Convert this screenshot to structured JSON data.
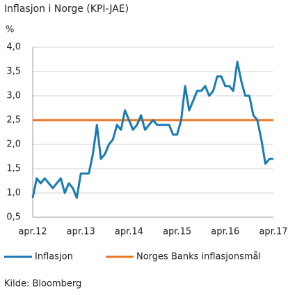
{
  "chart_data": {
    "type": "line",
    "title": "Inflasjon i Norge (KPI-JAE)",
    "y_label": "%",
    "source": "Kilde: Bloomberg",
    "categories": [
      "apr.12",
      null,
      null,
      null,
      null,
      null,
      null,
      null,
      null,
      null,
      null,
      null,
      "apr.13",
      null,
      null,
      null,
      null,
      null,
      null,
      null,
      null,
      null,
      null,
      null,
      "apr.14",
      null,
      null,
      null,
      null,
      null,
      null,
      null,
      null,
      null,
      null,
      null,
      "apr.15",
      null,
      null,
      null,
      null,
      null,
      null,
      null,
      null,
      null,
      null,
      null,
      "apr.16",
      null,
      null,
      null,
      null,
      null,
      null,
      null,
      null,
      null,
      null,
      null,
      "apr.17"
    ],
    "series": [
      {
        "name": "Inflasjon",
        "color": "#1a7bb0",
        "values": [
          0.9,
          1.3,
          1.2,
          1.3,
          1.2,
          1.1,
          1.2,
          1.3,
          1.0,
          1.2,
          1.1,
          0.9,
          1.4,
          1.4,
          1.4,
          1.8,
          2.4,
          1.7,
          1.8,
          2.0,
          2.1,
          2.4,
          2.3,
          2.7,
          2.5,
          2.3,
          2.4,
          2.6,
          2.3,
          2.4,
          2.5,
          2.4,
          2.4,
          2.4,
          2.4,
          2.2,
          2.2,
          2.5,
          3.2,
          2.7,
          2.9,
          3.1,
          3.1,
          3.2,
          3.0,
          3.1,
          3.4,
          3.4,
          3.2,
          3.2,
          3.1,
          3.7,
          3.3,
          3.0,
          3.0,
          2.6,
          2.5,
          2.1,
          1.6,
          1.7,
          1.7
        ]
      },
      {
        "name": "Norges Banks inflasjonsmål",
        "color": "#e87722",
        "values": [
          2.5,
          2.5,
          2.5,
          2.5,
          2.5,
          2.5,
          2.5,
          2.5,
          2.5,
          2.5,
          2.5,
          2.5,
          2.5,
          2.5,
          2.5,
          2.5,
          2.5,
          2.5,
          2.5,
          2.5,
          2.5,
          2.5,
          2.5,
          2.5,
          2.5,
          2.5,
          2.5,
          2.5,
          2.5,
          2.5,
          2.5,
          2.5,
          2.5,
          2.5,
          2.5,
          2.5,
          2.5,
          2.5,
          2.5,
          2.5,
          2.5,
          2.5,
          2.5,
          2.5,
          2.5,
          2.5,
          2.5,
          2.5,
          2.5,
          2.5,
          2.5,
          2.5,
          2.5,
          2.5,
          2.5,
          2.5,
          2.5,
          2.5,
          2.5,
          2.5,
          2.5
        ]
      }
    ],
    "ylim": [
      0.5,
      4.0
    ],
    "yticks": [
      {
        "value": 0.5,
        "label": "0,5"
      },
      {
        "value": 1.0,
        "label": "1,0"
      },
      {
        "value": 1.5,
        "label": "1,5"
      },
      {
        "value": 2.0,
        "label": "2,0"
      },
      {
        "value": 2.5,
        "label": "2,5"
      },
      {
        "value": 3.0,
        "label": "3,0"
      },
      {
        "value": 3.5,
        "label": "3,5"
      },
      {
        "value": 4.0,
        "label": "4,0"
      }
    ],
    "grid": true
  }
}
